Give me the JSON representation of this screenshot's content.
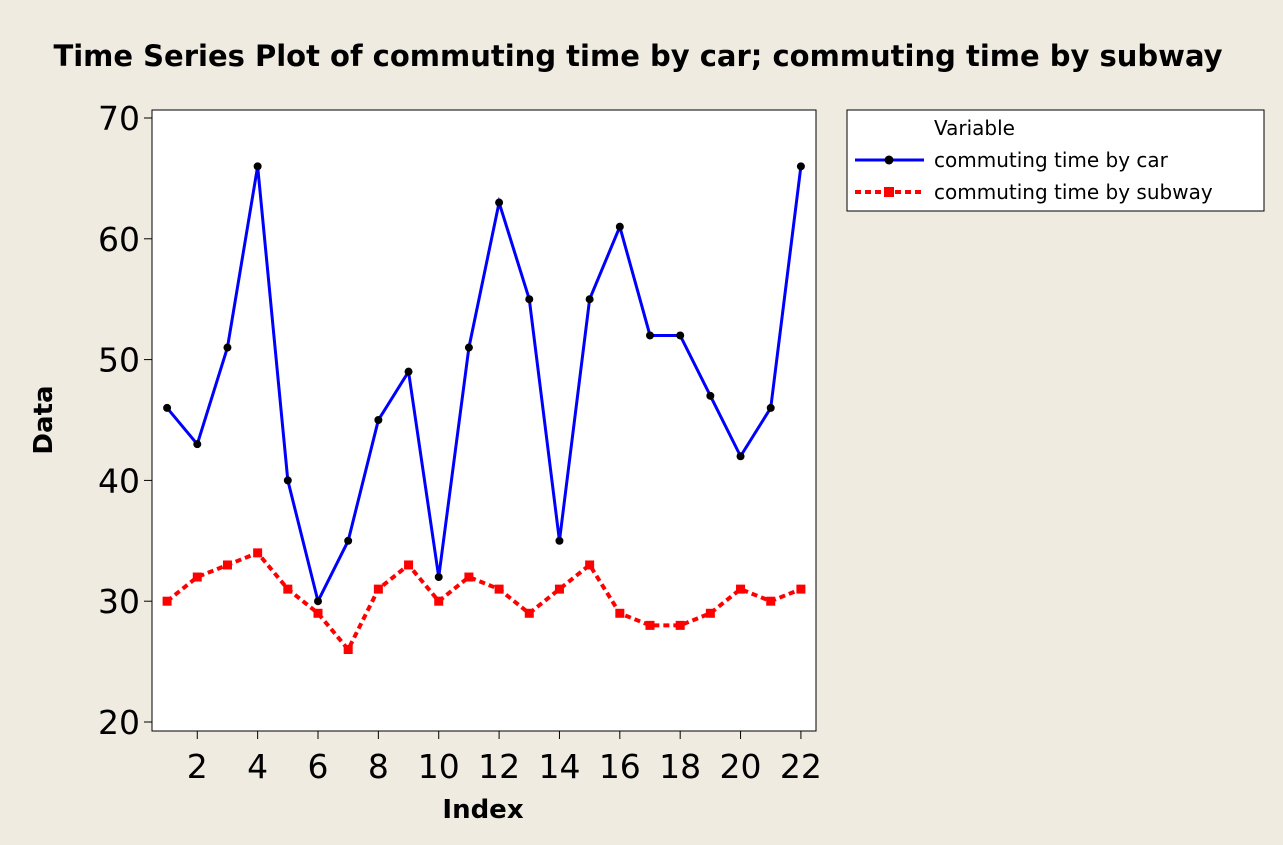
{
  "chart_data": {
    "type": "line",
    "title": "Time Series Plot of commuting time by car; commuting time by subway",
    "xlabel": "Index",
    "ylabel": "Data",
    "xlim": [
      0.5,
      22.5
    ],
    "ylim": [
      20,
      70
    ],
    "xticks": [
      2,
      4,
      6,
      8,
      10,
      12,
      14,
      16,
      18,
      20,
      22
    ],
    "yticks": [
      20,
      30,
      40,
      50,
      60,
      70
    ],
    "x": [
      1,
      2,
      3,
      4,
      5,
      6,
      7,
      8,
      9,
      10,
      11,
      12,
      13,
      14,
      15,
      16,
      17,
      18,
      19,
      20,
      21,
      22
    ],
    "legend_title": "Variable",
    "legend_position": "top-right outside",
    "series": [
      {
        "name": "commuting time by car",
        "color": "#0000ff",
        "marker": "circle",
        "dash": "solid",
        "values": [
          46,
          43,
          51,
          66,
          40,
          30,
          35,
          45,
          49,
          32,
          51,
          63,
          55,
          35,
          55,
          61,
          52,
          52,
          47,
          42,
          46,
          66
        ]
      },
      {
        "name": "commuting time by subway",
        "color": "#ff0000",
        "marker": "square",
        "dash": "dashed",
        "values": [
          30,
          32,
          33,
          34,
          31,
          29,
          26,
          31,
          33,
          30,
          32,
          31,
          29,
          31,
          33,
          29,
          28,
          28,
          29,
          31,
          30,
          31
        ]
      }
    ]
  }
}
